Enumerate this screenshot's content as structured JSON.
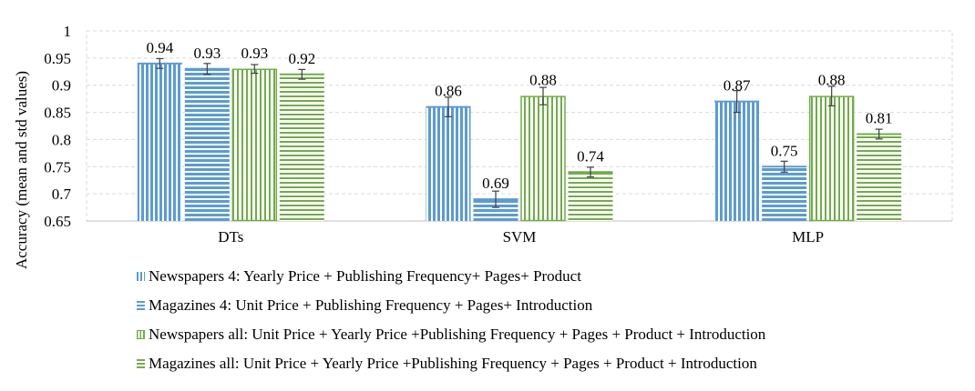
{
  "chart_data": {
    "type": "bar",
    "title": "",
    "xlabel": "",
    "ylabel": "Accuracy (mean and std values)",
    "ylim": [
      0.65,
      1
    ],
    "yticks": [
      "0.65",
      "0.7",
      "0.75",
      "0.8",
      "0.85",
      "0.9",
      "0.95",
      "1"
    ],
    "grid": true,
    "legend_position": "bottom",
    "categories": [
      "DTs",
      "SVM",
      "MLP"
    ],
    "series": [
      {
        "name": "Newspapers 4: Yearly Price + Publishing Frequency+ Pages+ Product",
        "values": [
          0.94,
          0.86,
          0.87
        ],
        "labels": [
          "0.94",
          "0.86",
          "0.87"
        ],
        "std": [
          0.009,
          0.018,
          0.02
        ],
        "pattern": "vertical",
        "color": "#5b9bd5"
      },
      {
        "name": "Magazines 4: Unit Price + Publishing Frequency + Pages+ Introduction",
        "values": [
          0.93,
          0.69,
          0.75
        ],
        "labels": [
          "0.93",
          "0.69",
          "0.75"
        ],
        "std": [
          0.01,
          0.015,
          0.01
        ],
        "pattern": "horizontal",
        "color": "#5b9bd5"
      },
      {
        "name": "Newspapers all: Unit Price + Yearly Price +Publishing Frequency + Pages + Product + Introduction",
        "values": [
          0.93,
          0.88,
          0.88
        ],
        "labels": [
          "0.93",
          "0.88",
          "0.88"
        ],
        "std": [
          0.008,
          0.016,
          0.018
        ],
        "pattern": "vertical-outline",
        "color": "#70ad47"
      },
      {
        "name": "Magazines all: Unit Price + Yearly Price +Publishing Frequency + Pages + Product + Introduction",
        "values": [
          0.92,
          0.74,
          0.81
        ],
        "labels": [
          "0.92",
          "0.74",
          "0.81"
        ],
        "std": [
          0.009,
          0.009,
          0.009
        ],
        "pattern": "horizontal",
        "color": "#70ad47"
      }
    ]
  }
}
